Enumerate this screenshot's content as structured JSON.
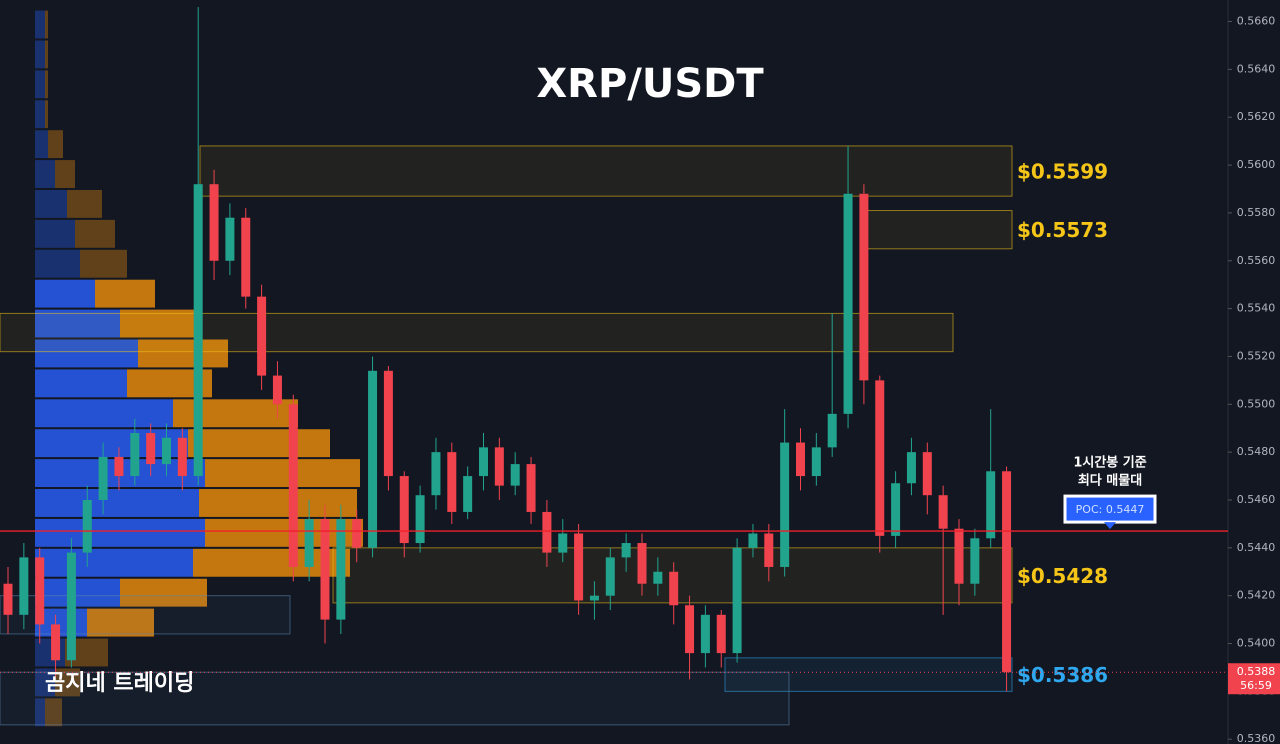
{
  "chart_data": {
    "type": "candlestick",
    "title": "XRP/USDT",
    "watermark": "곰지네 트레이딩",
    "note_lines": [
      "1시간봉 기준",
      "최다 매물대"
    ],
    "up_color": "#22a38e",
    "down_color": "#f0434e",
    "ylim": [
      0.5358,
      0.5669
    ],
    "yticks": [
      {
        "value": 0.536,
        "label": "0.5360"
      },
      {
        "value": 0.538,
        "label": "0.5380"
      },
      {
        "value": 0.54,
        "label": "0.5400"
      },
      {
        "value": 0.542,
        "label": "0.5420"
      },
      {
        "value": 0.544,
        "label": "0.5440"
      },
      {
        "value": 0.546,
        "label": "0.5460"
      },
      {
        "value": 0.548,
        "label": "0.5480"
      },
      {
        "value": 0.55,
        "label": "0.5500"
      },
      {
        "value": 0.552,
        "label": "0.5520"
      },
      {
        "value": 0.554,
        "label": "0.5540"
      },
      {
        "value": 0.556,
        "label": "0.5560"
      },
      {
        "value": 0.558,
        "label": "0.5580"
      },
      {
        "value": 0.56,
        "label": "0.5600"
      },
      {
        "value": 0.562,
        "label": "0.5620"
      },
      {
        "value": 0.564,
        "label": "0.5640"
      },
      {
        "value": 0.566,
        "label": "0.5660"
      }
    ],
    "open": [
      0.5425,
      0.5412,
      0.5436,
      0.5408,
      0.5393,
      0.5438,
      0.546,
      0.5478,
      0.547,
      0.5488,
      0.5475,
      0.5486,
      0.547,
      0.5592,
      0.556,
      0.5578,
      0.5545,
      0.5512,
      0.55,
      0.5432,
      0.5452,
      0.541,
      0.5452,
      0.544,
      0.5514,
      0.547,
      0.5442,
      0.5462,
      0.548,
      0.5455,
      0.547,
      0.5482,
      0.5466,
      0.5475,
      0.5455,
      0.5438,
      0.5446,
      0.5418,
      0.542,
      0.5436,
      0.5442,
      0.5425,
      0.543,
      0.5416,
      0.5396,
      0.5412,
      0.5396,
      0.544,
      0.5446,
      0.5432,
      0.5484,
      0.547,
      0.5482,
      0.5496,
      0.5588,
      0.551,
      0.5445,
      0.5467,
      0.548,
      0.5462,
      0.5448,
      0.5425,
      0.5444,
      0.5472
    ],
    "high": [
      0.5432,
      0.5442,
      0.544,
      0.5412,
      0.5444,
      0.5466,
      0.5484,
      0.5482,
      0.5494,
      0.5492,
      0.5492,
      0.549,
      0.5666,
      0.5598,
      0.5584,
      0.5582,
      0.555,
      0.5518,
      0.5504,
      0.546,
      0.5458,
      0.5458,
      0.5456,
      0.552,
      0.5516,
      0.5472,
      0.5466,
      0.5486,
      0.5484,
      0.5474,
      0.5488,
      0.5486,
      0.548,
      0.5478,
      0.546,
      0.5452,
      0.545,
      0.5426,
      0.544,
      0.5446,
      0.5446,
      0.5436,
      0.5434,
      0.542,
      0.5416,
      0.5414,
      0.5444,
      0.545,
      0.545,
      0.5498,
      0.549,
      0.5488,
      0.5538,
      0.5608,
      0.5592,
      0.5512,
      0.5472,
      0.5486,
      0.5484,
      0.5466,
      0.5452,
      0.5448,
      0.5498,
      0.5474
    ],
    "low": [
      0.5404,
      0.5406,
      0.54,
      0.5386,
      0.539,
      0.5432,
      0.5454,
      0.5464,
      0.5466,
      0.547,
      0.547,
      0.5464,
      0.5466,
      0.5552,
      0.5554,
      0.554,
      0.5506,
      0.5494,
      0.5426,
      0.5426,
      0.54,
      0.5404,
      0.5434,
      0.5436,
      0.5464,
      0.5436,
      0.5438,
      0.5456,
      0.545,
      0.5452,
      0.5464,
      0.546,
      0.5462,
      0.545,
      0.5432,
      0.5434,
      0.5412,
      0.541,
      0.5414,
      0.543,
      0.542,
      0.542,
      0.5408,
      0.5385,
      0.539,
      0.539,
      0.5392,
      0.5436,
      0.5426,
      0.5428,
      0.5464,
      0.5466,
      0.5478,
      0.549,
      0.55,
      0.5438,
      0.544,
      0.5462,
      0.5454,
      0.5412,
      0.5416,
      0.542,
      0.544,
      0.538
    ],
    "close": [
      0.5412,
      0.5436,
      0.5408,
      0.5393,
      0.5438,
      0.546,
      0.5478,
      0.547,
      0.5488,
      0.5475,
      0.5486,
      0.547,
      0.5592,
      0.556,
      0.5578,
      0.5545,
      0.5512,
      0.55,
      0.5432,
      0.5452,
      0.541,
      0.5452,
      0.544,
      0.5514,
      0.547,
      0.5442,
      0.5462,
      0.548,
      0.5455,
      0.547,
      0.5482,
      0.5466,
      0.5475,
      0.5455,
      0.5438,
      0.5446,
      0.5418,
      0.542,
      0.5436,
      0.5442,
      0.5425,
      0.543,
      0.5416,
      0.5396,
      0.5412,
      0.5396,
      0.544,
      0.5446,
      0.5432,
      0.5484,
      0.547,
      0.5482,
      0.5496,
      0.5588,
      0.551,
      0.5445,
      0.5467,
      0.548,
      0.5462,
      0.5448,
      0.5425,
      0.5444,
      0.5472,
      0.5388
    ],
    "profile": {
      "bins": [
        0.5365,
        0.53775,
        0.539,
        0.54025,
        0.5415,
        0.54275,
        0.544,
        0.54525,
        0.5465,
        0.54775,
        0.549,
        0.55025,
        0.5515,
        0.55275,
        0.554,
        0.55525,
        0.5565,
        0.55775,
        0.559,
        0.56025,
        0.5615,
        0.56275,
        0.564,
        0.56525,
        0.5665
      ],
      "series": [
        {
          "color": "#2962ff",
          "values": [
            10,
            20,
            30,
            52,
            85,
            158,
            170,
            164,
            170,
            153,
            138,
            92,
            103,
            85,
            60,
            45,
            40,
            32,
            20,
            13,
            10,
            10,
            10,
            10
          ]
        },
        {
          "color": "#f0900a",
          "values": [
            17,
            25,
            43,
            67,
            87,
            157,
            158,
            158,
            155,
            142,
            125,
            85,
            90,
            80,
            60,
            47,
            40,
            35,
            20,
            15,
            3,
            3,
            3,
            3
          ]
        }
      ]
    },
    "zones": [
      {
        "top": 0.5608,
        "bottom": 0.5587,
        "label": "$0.5599",
        "color": "#f5c518"
      },
      {
        "top": 0.5581,
        "bottom": 0.5565,
        "label": "$0.5573",
        "color": "#f5c518"
      },
      {
        "top": 0.5538,
        "bottom": 0.5522,
        "color": "#f5c518"
      },
      {
        "top": 0.544,
        "bottom": 0.5417,
        "label": "$0.5428",
        "color": "#f5c518"
      },
      {
        "top": 0.542,
        "bottom": 0.5404,
        "color": "#5b86b0"
      },
      {
        "top": 0.5394,
        "bottom": 0.538,
        "label": "$0.5386",
        "color": "#2fa8f0"
      },
      {
        "top": 0.5388,
        "bottom": 0.5366,
        "color": "#5b86b0"
      }
    ],
    "poc": {
      "value": 0.5447,
      "label": "POC: 0.5447",
      "color": "#f0202a"
    },
    "last_price": 0.5388,
    "countdown": "56:59"
  }
}
